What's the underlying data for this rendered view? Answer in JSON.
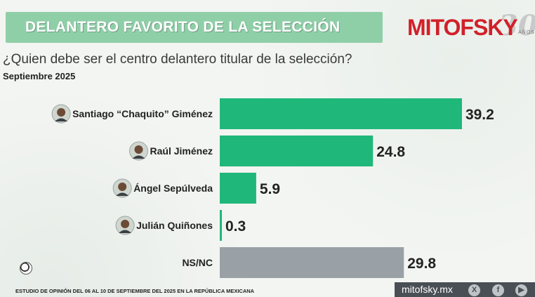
{
  "header": {
    "title": "DELANTERO FAVORITO DE LA SELECCIÓN",
    "brand": "MITOFSKY",
    "brand_anniversary": "30",
    "brand_anos": "AÑOS"
  },
  "question": "¿Quien debe ser el centro delantero titular de la selección?",
  "date": "Septiembre 2025",
  "footer": {
    "note": "ESTUDIO DE OPINIÓN DEL 06 AL 10 DE SEPTIEMBRE DEL 2025 EN LA REPÚBLICA MEXICANA",
    "site": "mitofsky.mx",
    "icons": [
      "x-icon",
      "facebook-icon",
      "youtube-icon"
    ]
  },
  "colors": {
    "bar": "#1fb87a",
    "bar_other": "#9aa1a6",
    "banner": "#8fcfa8",
    "brand": "#d1202a"
  },
  "chart_data": {
    "type": "bar",
    "orientation": "horizontal",
    "categories": [
      "Santiago “Chaquito” Giménez",
      "Raúl Jiménez",
      "Ángel Sepúlveda",
      "Julián Quiñones",
      "NS/NC"
    ],
    "values": [
      39.2,
      24.8,
      5.9,
      0.3,
      29.8
    ],
    "value_labels": [
      "39.2",
      "24.8",
      "5.9",
      "0.3",
      "29.8"
    ],
    "has_photo": [
      true,
      true,
      true,
      true,
      false
    ],
    "title": "",
    "xlabel": "",
    "ylabel": "",
    "xlim": [
      0,
      40
    ]
  }
}
